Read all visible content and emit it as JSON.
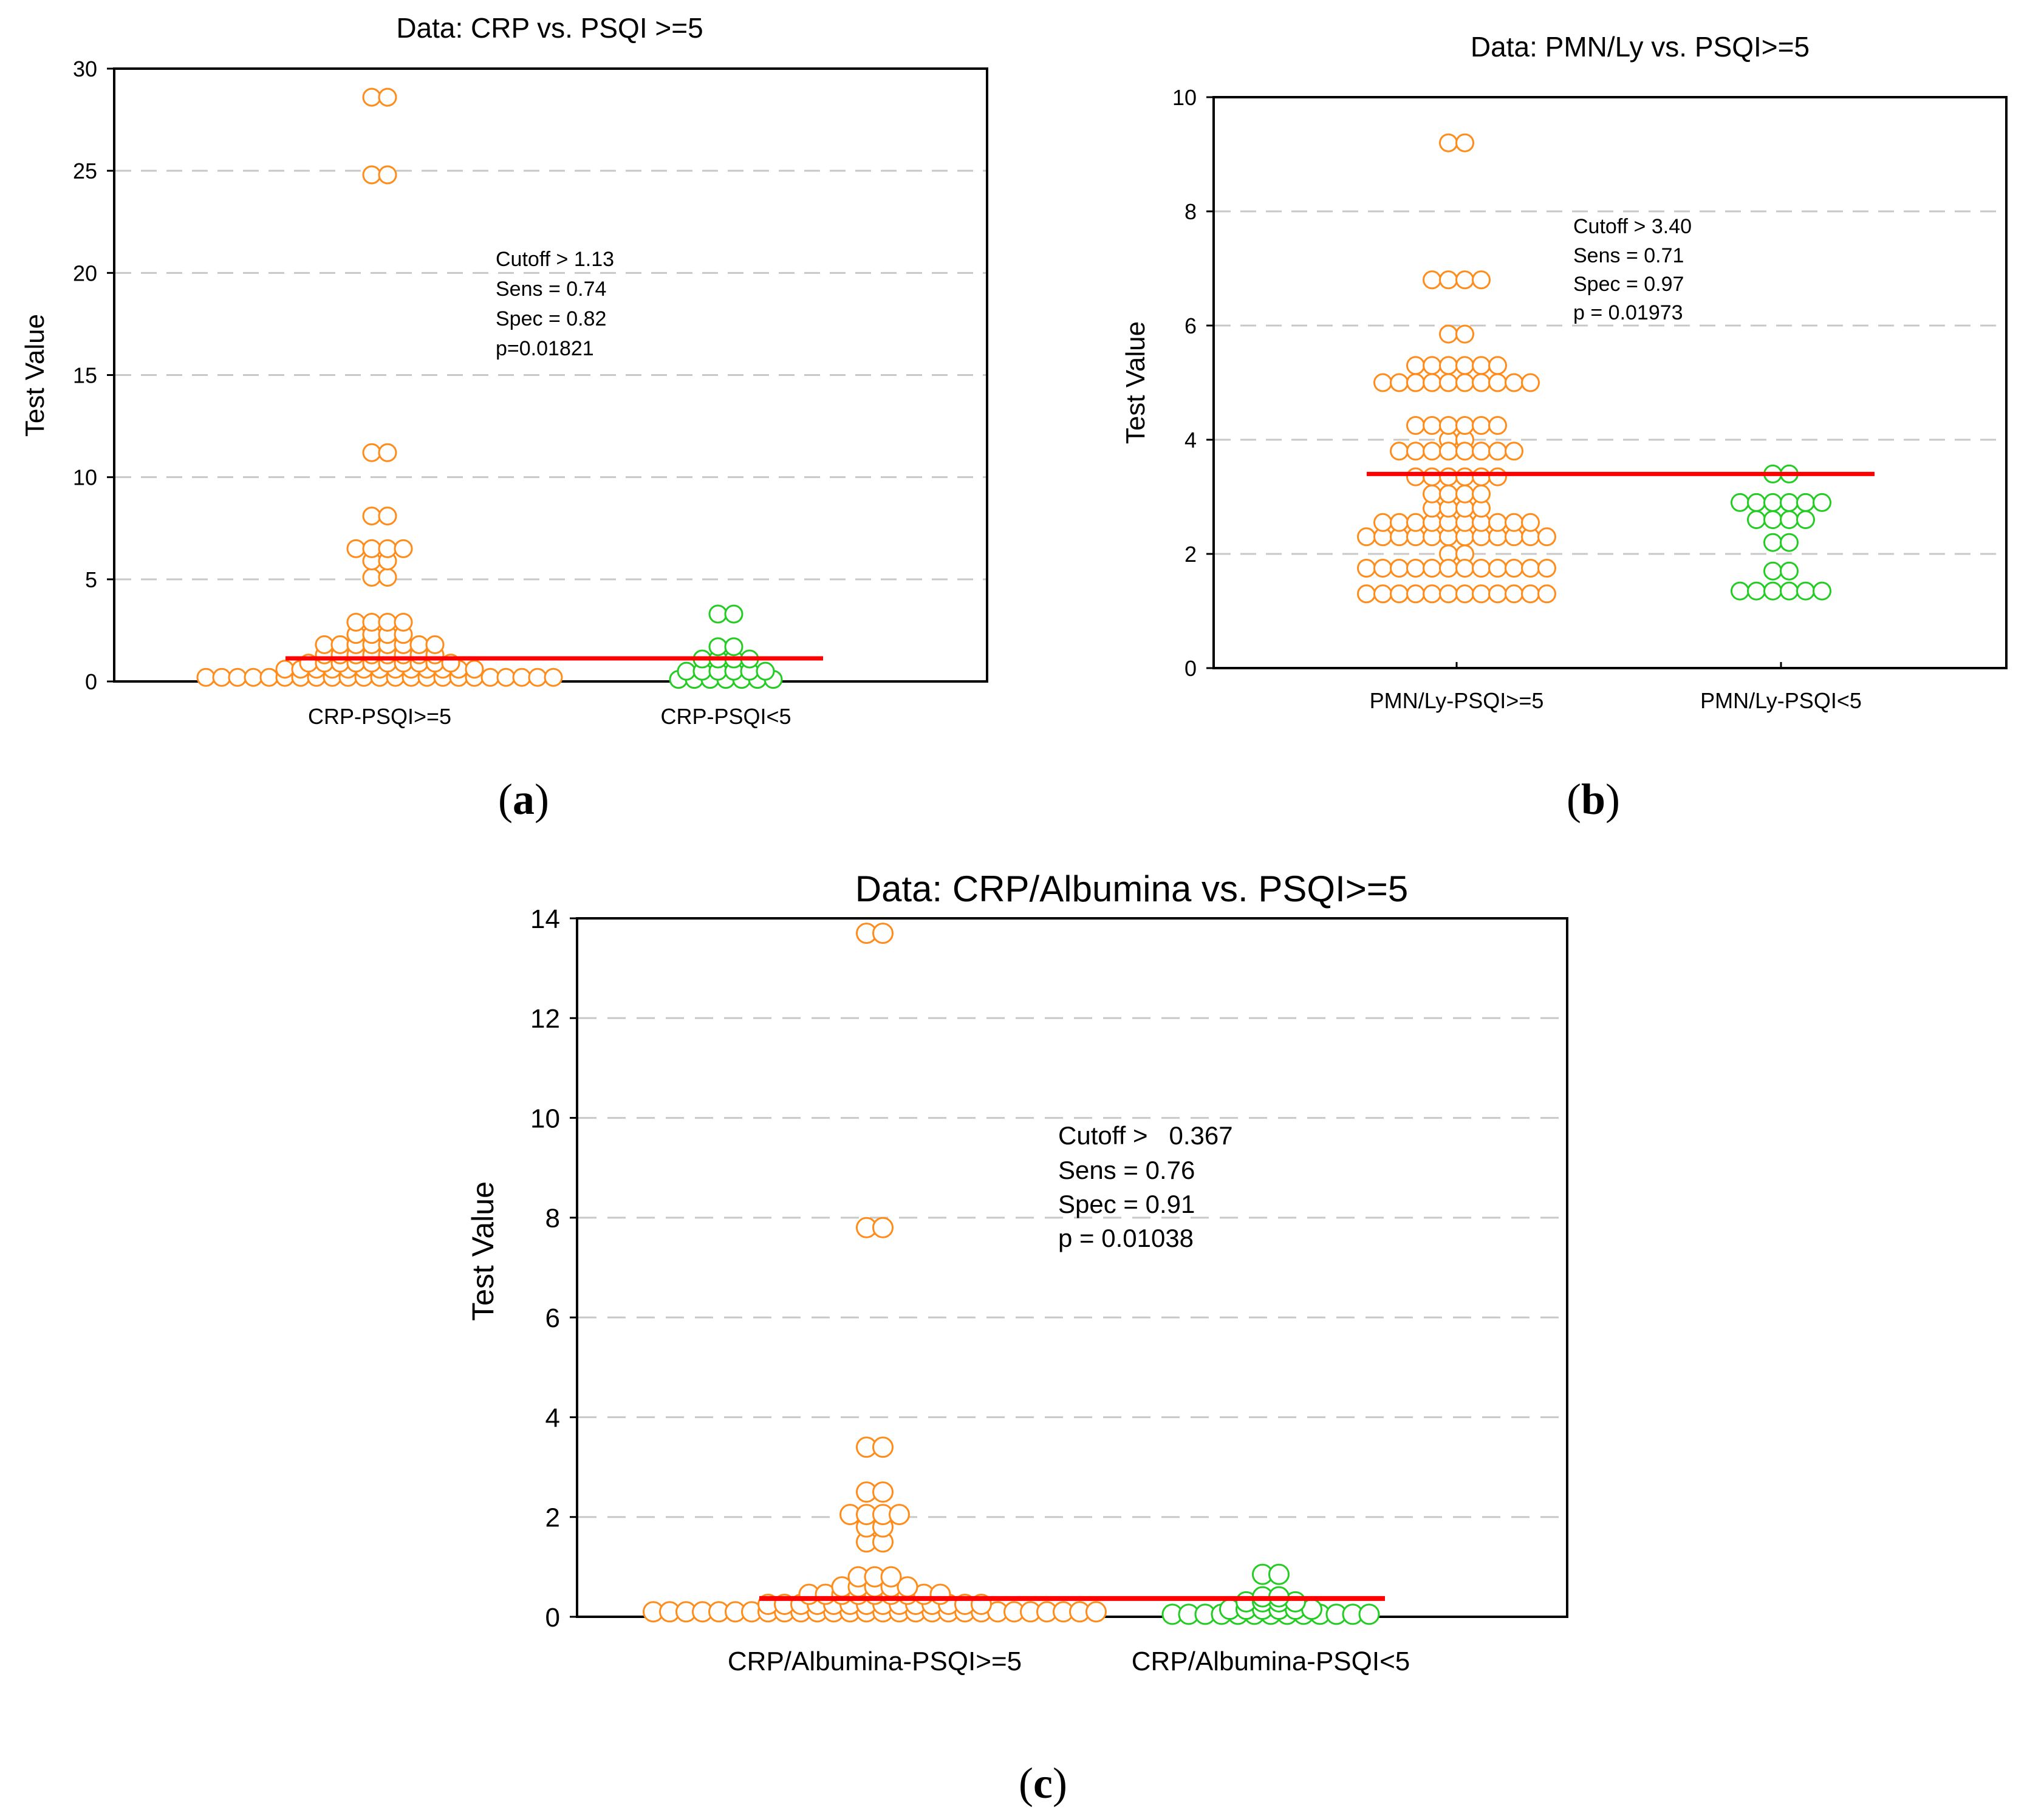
{
  "colors": {
    "group1": "#ff8c1a",
    "group2": "#22cc22",
    "cutoff_line": "#ff0000",
    "grid": "#c8c8c8",
    "axis": "#000000"
  },
  "chart_data": [
    {
      "id": "a",
      "type": "scatter",
      "subtype": "dot-plot",
      "panel_label": "a",
      "title": "Data: CRP vs. PSQI >=5",
      "xlabel": "",
      "ylabel": "Test Value",
      "ylim": [
        0,
        30
      ],
      "yticks": [
        "0",
        "5",
        "10",
        "15",
        "20",
        "25",
        "30"
      ],
      "grid": "horizontal dashed",
      "categories": [
        "CRP-PSQI>=5",
        "CRP-PSQI<5"
      ],
      "cutoff": 1.13,
      "annotation": [
        "Cutoff > 1.13",
        "Sens = 0.74",
        "Spec = 0.82",
        "p=0.01821"
      ],
      "series": [
        {
          "name": "CRP-PSQI>=5",
          "color": "group1",
          "values": [
            0.2,
            0.2,
            0.2,
            0.2,
            0.2,
            0.2,
            0.2,
            0.2,
            0.2,
            0.2,
            0.2,
            0.2,
            0.2,
            0.2,
            0.2,
            0.2,
            0.2,
            0.2,
            0.2,
            0.2,
            0.2,
            0.2,
            0.2,
            0.6,
            0.6,
            0.6,
            0.6,
            0.6,
            0.6,
            0.6,
            0.6,
            0.6,
            0.6,
            0.6,
            0.6,
            0.6,
            0.9,
            0.9,
            0.9,
            0.9,
            0.9,
            0.9,
            0.9,
            0.9,
            0.9,
            0.9,
            1.3,
            1.3,
            1.3,
            1.3,
            1.3,
            1.3,
            1.3,
            1.3,
            1.8,
            1.8,
            1.8,
            1.8,
            1.8,
            1.8,
            1.8,
            1.8,
            2.3,
            2.3,
            2.3,
            2.3,
            2.9,
            2.9,
            2.9,
            2.9,
            5.1,
            5.1,
            5.9,
            5.9,
            6.5,
            6.5,
            6.5,
            6.5,
            8.1,
            8.1,
            11.2,
            11.2,
            24.8,
            24.8,
            28.6,
            28.6
          ]
        },
        {
          "name": "CRP-PSQI<5",
          "color": "group2",
          "values": [
            0.1,
            0.1,
            0.1,
            0.1,
            0.1,
            0.1,
            0.1,
            0.5,
            0.5,
            0.5,
            0.5,
            0.5,
            0.5,
            1.1,
            1.1,
            1.1,
            1.1,
            1.7,
            1.7,
            3.3,
            3.3
          ]
        }
      ]
    },
    {
      "id": "b",
      "type": "scatter",
      "subtype": "dot-plot",
      "panel_label": "b",
      "title": "Data: PMN/Ly  vs. PSQI>=5",
      "xlabel": "",
      "ylabel": "Test Value",
      "ylim": [
        0,
        10
      ],
      "yticks": [
        "0",
        "2",
        "4",
        "6",
        "8",
        "10"
      ],
      "grid": "horizontal dashed",
      "categories": [
        "PMN/Ly-PSQI>=5",
        "PMN/Ly-PSQI<5"
      ],
      "cutoff": 3.4,
      "annotation": [
        "Cutoff > 3.40",
        "Sens = 0.71",
        "Spec = 0.97",
        "p = 0.01973"
      ],
      "series": [
        {
          "name": "PMN/Ly-PSQI>=5",
          "color": "group1",
          "values": [
            1.3,
            1.3,
            1.3,
            1.3,
            1.3,
            1.3,
            1.3,
            1.3,
            1.3,
            1.3,
            1.3,
            1.3,
            1.75,
            1.75,
            1.75,
            1.75,
            1.75,
            1.75,
            1.75,
            1.75,
            1.75,
            1.75,
            1.75,
            1.75,
            2.0,
            2.0,
            2.3,
            2.3,
            2.3,
            2.3,
            2.3,
            2.3,
            2.3,
            2.3,
            2.3,
            2.3,
            2.3,
            2.3,
            2.55,
            2.55,
            2.55,
            2.55,
            2.55,
            2.55,
            2.55,
            2.55,
            2.55,
            2.55,
            2.8,
            2.8,
            2.8,
            2.8,
            3.05,
            3.05,
            3.05,
            3.05,
            3.35,
            3.35,
            3.35,
            3.35,
            3.35,
            3.35,
            3.8,
            3.8,
            3.8,
            3.8,
            3.8,
            3.8,
            3.8,
            3.8,
            4.0,
            4.0,
            4.25,
            4.25,
            4.25,
            4.25,
            4.25,
            4.25,
            5.0,
            5.0,
            5.0,
            5.0,
            5.0,
            5.0,
            5.0,
            5.0,
            5.0,
            5.0,
            5.3,
            5.3,
            5.3,
            5.3,
            5.3,
            5.3,
            5.85,
            5.85,
            6.8,
            6.8,
            6.8,
            6.8,
            9.2,
            9.2
          ]
        },
        {
          "name": "PMN/Ly-PSQI<5",
          "color": "group2",
          "values": [
            1.35,
            1.35,
            1.35,
            1.35,
            1.35,
            1.35,
            1.7,
            1.7,
            2.2,
            2.2,
            2.6,
            2.6,
            2.6,
            2.6,
            2.9,
            2.9,
            2.9,
            2.9,
            2.9,
            2.9,
            3.4,
            3.4
          ]
        }
      ]
    },
    {
      "id": "c",
      "type": "scatter",
      "subtype": "dot-plot",
      "panel_label": "c",
      "title": "Data: CRP/Albumina  vs. PSQI>=5",
      "xlabel": "",
      "ylabel": "Test Value",
      "ylim": [
        0,
        14
      ],
      "yticks": [
        "0",
        "2",
        "4",
        "6",
        "8",
        "10",
        "12",
        "14"
      ],
      "grid": "horizontal dashed",
      "categories": [
        "CRP/Albumina-PSQI>=5",
        "CRP/Albumina-PSQI<5"
      ],
      "cutoff": 0.367,
      "annotation": [
        "Cutoff >   0.367",
        "Sens = 0.76",
        "Spec = 0.91",
        "p = 0.01038"
      ],
      "series": [
        {
          "name": "CRP/Albumina-PSQI>=5",
          "color": "group1",
          "values": [
            0.1,
            0.1,
            0.1,
            0.1,
            0.1,
            0.1,
            0.1,
            0.1,
            0.1,
            0.1,
            0.1,
            0.1,
            0.1,
            0.1,
            0.1,
            0.1,
            0.1,
            0.1,
            0.1,
            0.1,
            0.1,
            0.1,
            0.1,
            0.1,
            0.1,
            0.1,
            0.1,
            0.1,
            0.25,
            0.25,
            0.25,
            0.25,
            0.25,
            0.25,
            0.25,
            0.25,
            0.25,
            0.25,
            0.25,
            0.25,
            0.25,
            0.25,
            0.45,
            0.45,
            0.45,
            0.45,
            0.45,
            0.45,
            0.45,
            0.45,
            0.45,
            0.6,
            0.6,
            0.6,
            0.6,
            0.6,
            0.8,
            0.8,
            0.8,
            1.5,
            1.5,
            1.8,
            1.8,
            2.05,
            2.05,
            2.05,
            2.05,
            2.5,
            2.5,
            3.4,
            3.4,
            7.8,
            7.8,
            13.7,
            13.7
          ]
        },
        {
          "name": "CRP/Albumina-PSQI<5",
          "color": "group2",
          "values": [
            0.05,
            0.05,
            0.05,
            0.05,
            0.05,
            0.05,
            0.05,
            0.05,
            0.05,
            0.05,
            0.05,
            0.05,
            0.05,
            0.15,
            0.15,
            0.15,
            0.15,
            0.15,
            0.15,
            0.3,
            0.3,
            0.3,
            0.3,
            0.4,
            0.4,
            0.85,
            0.85
          ]
        }
      ]
    }
  ]
}
